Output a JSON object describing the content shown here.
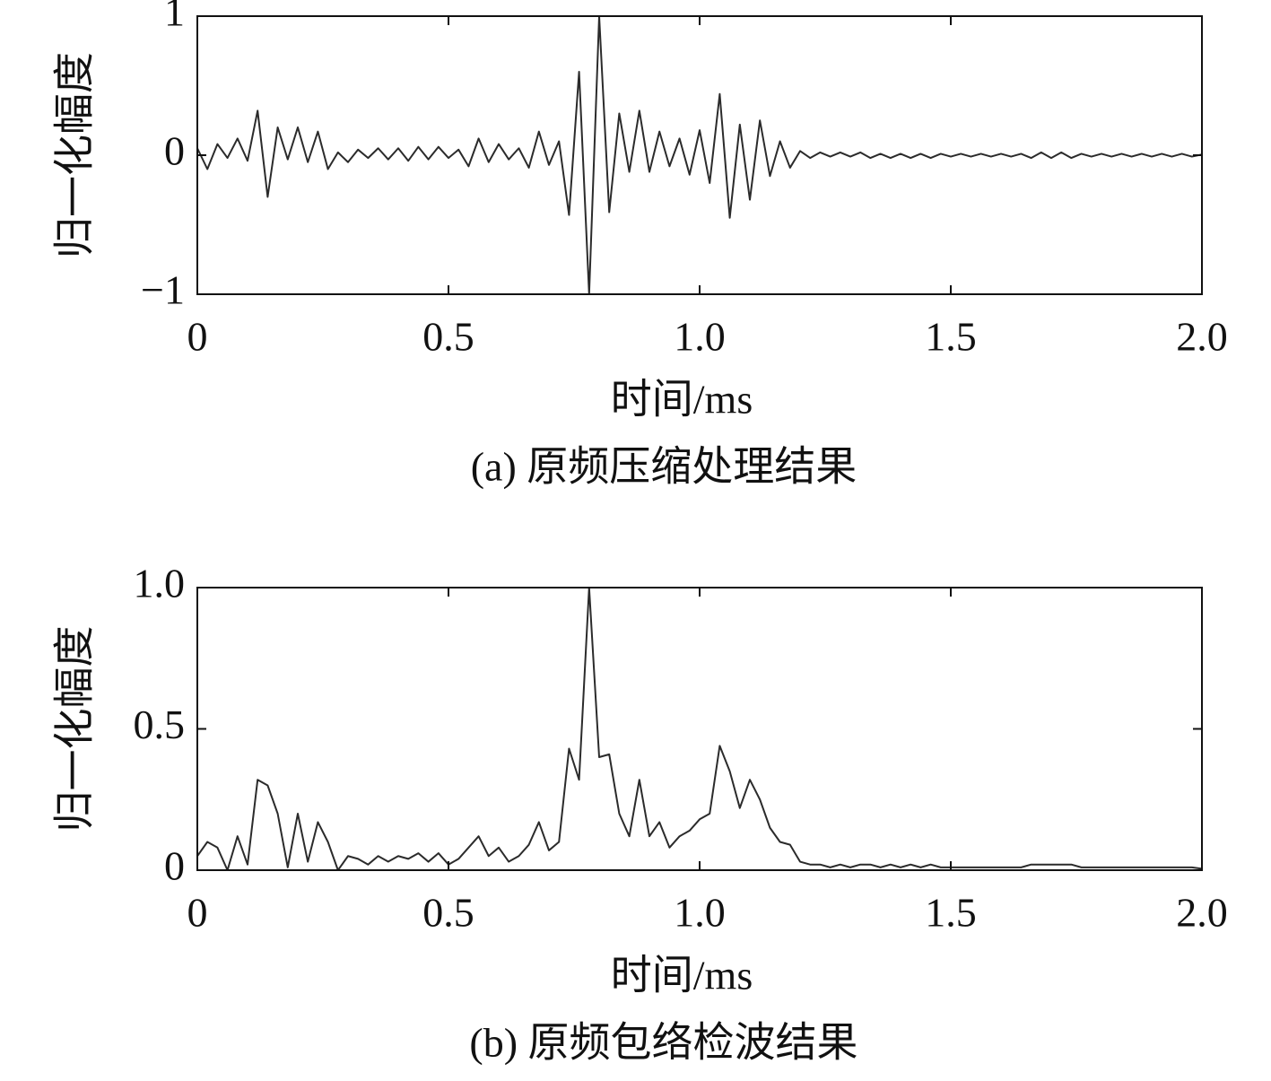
{
  "chart_data": [
    {
      "type": "line",
      "caption": "(a) 原频压缩处理结果",
      "xlabel": "时间/ms",
      "ylabel": "归一化幅度",
      "color": "#2b2b2b",
      "x": [
        0,
        0.02,
        0.04,
        0.06,
        0.08,
        0.1,
        0.12,
        0.14,
        0.16,
        0.18,
        0.2,
        0.22,
        0.24,
        0.26,
        0.28,
        0.3,
        0.32,
        0.34,
        0.36,
        0.38,
        0.4,
        0.42,
        0.44,
        0.46,
        0.48,
        0.5,
        0.52,
        0.54,
        0.56,
        0.58,
        0.6,
        0.62,
        0.64,
        0.66,
        0.68,
        0.7,
        0.72,
        0.74,
        0.76,
        0.78,
        0.8,
        0.82,
        0.84,
        0.86,
        0.88,
        0.9,
        0.92,
        0.94,
        0.96,
        0.98,
        1,
        1.02,
        1.04,
        1.06,
        1.08,
        1.1,
        1.12,
        1.14,
        1.16,
        1.18,
        1.2,
        1.22,
        1.24,
        1.26,
        1.28,
        1.3,
        1.32,
        1.34,
        1.36,
        1.38,
        1.4,
        1.42,
        1.44,
        1.46,
        1.48,
        1.5,
        1.52,
        1.54,
        1.56,
        1.58,
        1.6,
        1.62,
        1.64,
        1.66,
        1.68,
        1.7,
        1.72,
        1.74,
        1.76,
        1.78,
        1.8,
        1.82,
        1.84,
        1.86,
        1.88,
        1.9,
        1.92,
        1.94,
        1.96,
        1.98,
        2
      ],
      "values": [
        0.05,
        -0.1,
        0.08,
        -0.02,
        0.12,
        -0.04,
        0.32,
        -0.3,
        0.2,
        -0.03,
        0.2,
        -0.05,
        0.17,
        -0.1,
        0.02,
        -0.05,
        0.04,
        -0.02,
        0.05,
        -0.03,
        0.05,
        -0.04,
        0.06,
        -0.03,
        0.06,
        -0.02,
        0.04,
        -0.08,
        0.12,
        -0.05,
        0.08,
        -0.03,
        0.05,
        -0.09,
        0.17,
        -0.07,
        0.1,
        -0.43,
        0.6,
        -1.0,
        1.0,
        -0.41,
        0.3,
        -0.12,
        0.32,
        -0.12,
        0.17,
        -0.08,
        0.12,
        -0.14,
        0.18,
        -0.2,
        0.44,
        -0.45,
        0.22,
        -0.32,
        0.25,
        -0.15,
        0.1,
        -0.09,
        0.03,
        -0.02,
        0.02,
        -0.01,
        0.02,
        -0.01,
        0.02,
        -0.02,
        0.01,
        -0.02,
        0.01,
        -0.02,
        0.01,
        -0.02,
        0.01,
        -0.01,
        0.01,
        -0.01,
        0.01,
        -0.01,
        0.01,
        -0.01,
        0.01,
        -0.02,
        0.02,
        -0.02,
        0.02,
        -0.02,
        0.01,
        -0.01,
        0.01,
        -0.01,
        0.01,
        -0.01,
        0.01,
        -0.01,
        0.01,
        -0.01,
        0.01,
        -0.01,
        0.005
      ],
      "xlim": [
        0,
        2
      ],
      "xticks": [
        0,
        0.5,
        {
          "value": 1,
          "label": "1.0"
        },
        1.5,
        {
          "value": 2,
          "label": "2.0"
        }
      ],
      "ylim": [
        -1,
        1
      ],
      "yticks": [
        {
          "value": -1,
          "label": "−1"
        },
        0,
        1
      ]
    },
    {
      "type": "line",
      "caption": "(b) 原频包络检波结果",
      "xlabel": "时间/ms",
      "ylabel": "归一化幅度",
      "color": "#2b2b2b",
      "x": [
        0,
        0.02,
        0.04,
        0.06,
        0.08,
        0.1,
        0.12,
        0.14,
        0.16,
        0.18,
        0.2,
        0.22,
        0.24,
        0.26,
        0.28,
        0.3,
        0.32,
        0.34,
        0.36,
        0.38,
        0.4,
        0.42,
        0.44,
        0.46,
        0.48,
        0.5,
        0.52,
        0.54,
        0.56,
        0.58,
        0.6,
        0.62,
        0.64,
        0.66,
        0.68,
        0.7,
        0.72,
        0.74,
        0.76,
        0.78,
        0.8,
        0.82,
        0.84,
        0.86,
        0.88,
        0.9,
        0.92,
        0.94,
        0.96,
        0.98,
        1,
        1.02,
        1.04,
        1.06,
        1.08,
        1.1,
        1.12,
        1.14,
        1.16,
        1.18,
        1.2,
        1.22,
        1.24,
        1.26,
        1.28,
        1.3,
        1.32,
        1.34,
        1.36,
        1.38,
        1.4,
        1.42,
        1.44,
        1.46,
        1.48,
        1.5,
        1.52,
        1.54,
        1.56,
        1.58,
        1.6,
        1.62,
        1.64,
        1.66,
        1.68,
        1.7,
        1.72,
        1.74,
        1.76,
        1.78,
        1.8,
        1.82,
        1.84,
        1.86,
        1.88,
        1.9,
        1.92,
        1.94,
        1.96,
        1.98,
        2
      ],
      "values": [
        0.05,
        0.1,
        0.08,
        0,
        0.12,
        0.02,
        0.32,
        0.3,
        0.2,
        0.01,
        0.2,
        0.03,
        0.17,
        0.1,
        0,
        0.05,
        0.04,
        0.02,
        0.05,
        0.03,
        0.05,
        0.04,
        0.06,
        0.03,
        0.06,
        0.02,
        0.04,
        0.08,
        0.12,
        0.05,
        0.08,
        0.03,
        0.05,
        0.09,
        0.17,
        0.07,
        0.1,
        0.43,
        0.32,
        1.0,
        0.4,
        0.41,
        0.2,
        0.12,
        0.32,
        0.12,
        0.17,
        0.08,
        0.12,
        0.14,
        0.18,
        0.2,
        0.44,
        0.35,
        0.22,
        0.32,
        0.25,
        0.15,
        0.1,
        0.09,
        0.03,
        0.02,
        0.02,
        0.01,
        0.02,
        0.01,
        0.02,
        0.02,
        0.01,
        0.02,
        0.01,
        0.02,
        0.01,
        0.02,
        0.01,
        0.01,
        0.01,
        0.01,
        0.01,
        0.01,
        0.01,
        0.01,
        0.01,
        0.02,
        0.02,
        0.02,
        0.02,
        0.02,
        0.01,
        0.01,
        0.01,
        0.01,
        0.01,
        0.01,
        0.01,
        0.01,
        0.01,
        0.01,
        0.01,
        0.01,
        0.005
      ],
      "xlim": [
        0,
        2
      ],
      "xticks": [
        0,
        0.5,
        {
          "value": 1,
          "label": "1.0"
        },
        1.5,
        {
          "value": 2,
          "label": "2.0"
        }
      ],
      "ylim": [
        0,
        1
      ],
      "yticks": [
        0,
        0.5,
        {
          "value": 1,
          "label": "1.0"
        }
      ]
    }
  ]
}
